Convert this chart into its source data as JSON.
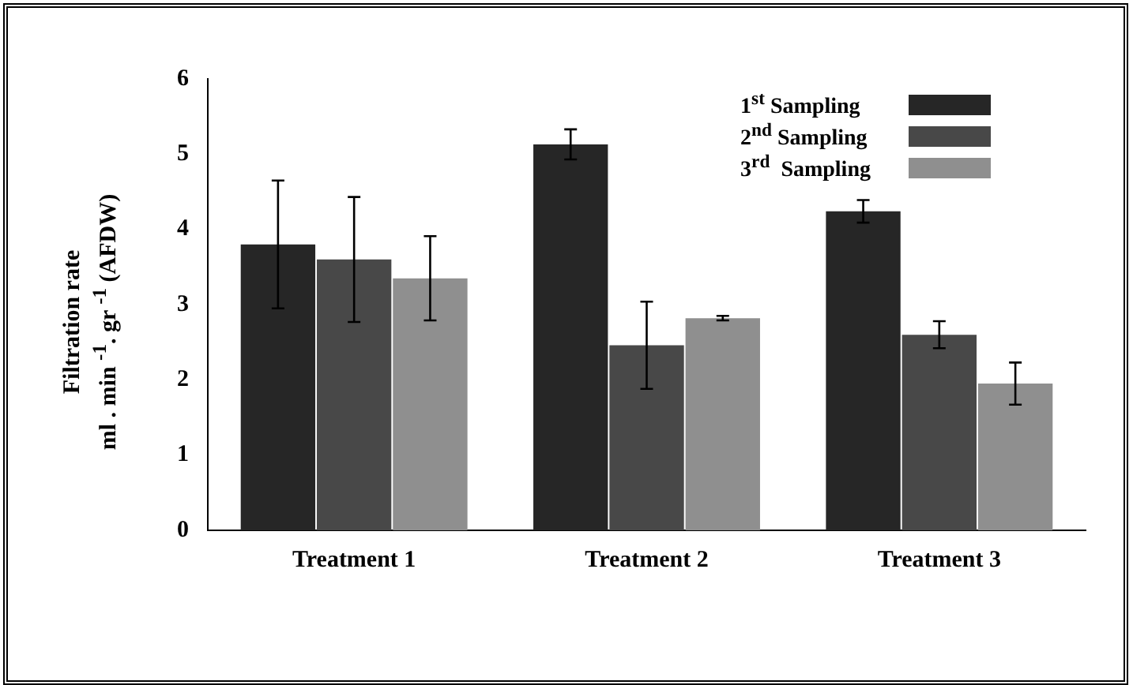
{
  "chart_data": {
    "type": "bar",
    "ylabel": "Filtration rate\nml . min $^{-1}$. gr $^{-1}$ (AFDW)",
    "categories": [
      "Treatment 1",
      "Treatment 2",
      "Treatment 3"
    ],
    "series": [
      {
        "name": "1$^{st}$ Sampling",
        "color": "#262626",
        "values": [
          3.8,
          5.13,
          4.24
        ],
        "errors": [
          0.85,
          0.2,
          0.15
        ]
      },
      {
        "name": "2$^{nd}$ Sampling",
        "color": "#484848",
        "values": [
          3.6,
          2.46,
          2.6
        ],
        "errors": [
          0.83,
          0.58,
          0.18
        ]
      },
      {
        "name": "3$^{rd}$  Sampling",
        "color": "#8f8f8f",
        "values": [
          3.35,
          2.82,
          1.95
        ],
        "errors": [
          0.56,
          0.03,
          0.28
        ]
      }
    ],
    "ylim": [
      0,
      6
    ],
    "yticks": [
      0,
      1,
      2,
      3,
      4,
      5,
      6
    ],
    "grid": false,
    "legend": "top right"
  }
}
